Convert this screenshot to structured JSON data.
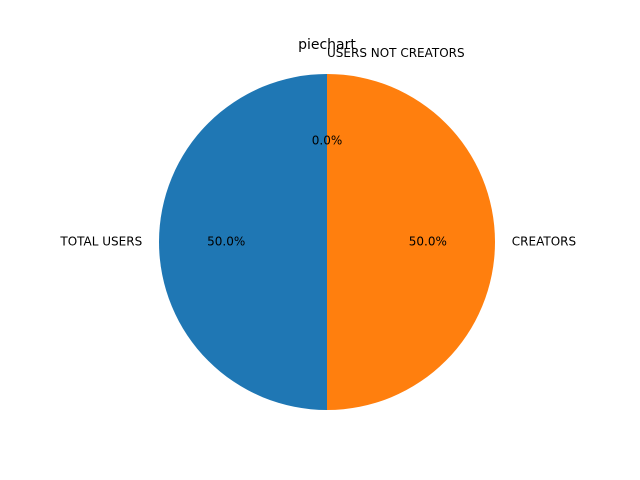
{
  "chart_data": {
    "type": "pie",
    "title": "piechart",
    "labels": [
      "TOTAL USERS",
      "CREATORS",
      "USERS NOT CREATORS"
    ],
    "values": [
      50.0,
      50.0,
      0.0
    ],
    "percent_labels": [
      "50.0%",
      "50.0%",
      "0.0%"
    ],
    "colors": [
      "#1f77b4",
      "#ff7f0e",
      "#2ca02c"
    ],
    "start_angle": 90,
    "direction": "counterclockwise"
  }
}
